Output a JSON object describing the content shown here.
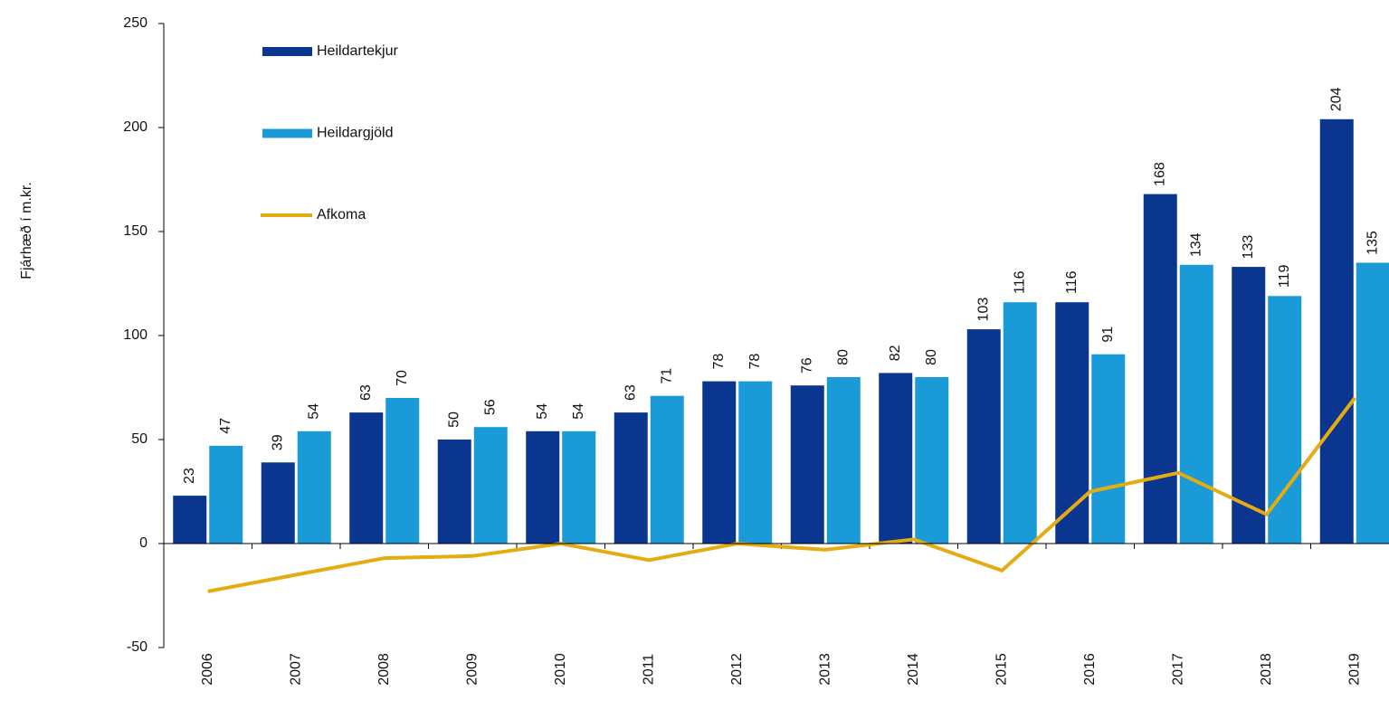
{
  "chart_data": {
    "type": "bar",
    "y_label": "Fjárhæð í m.kr.",
    "categories": [
      "2006",
      "2007",
      "2008",
      "2009",
      "2010",
      "2011",
      "2012",
      "2013",
      "2014",
      "2015",
      "2016",
      "2017",
      "2018",
      "2019"
    ],
    "series": [
      {
        "name": "Heildartekjur",
        "color": "#0a3690",
        "values": [
          23,
          39,
          63,
          50,
          54,
          63,
          78,
          76,
          82,
          103,
          116,
          168,
          133,
          204
        ]
      },
      {
        "name": "Heildargjöld",
        "color": "#1b9ad8",
        "values": [
          47,
          54,
          70,
          56,
          54,
          71,
          78,
          80,
          80,
          116,
          91,
          134,
          119,
          135
        ]
      },
      {
        "name": "Afkoma",
        "color": "#e5ac12",
        "type": "line",
        "values": [
          -23,
          -15,
          -7,
          -6,
          0,
          -8,
          0,
          -3,
          2,
          -13,
          25,
          34,
          14,
          70
        ]
      }
    ],
    "ylim": [
      -50,
      250
    ],
    "yticks": [
      -50,
      0,
      50,
      100,
      150,
      200,
      250
    ],
    "value_labels_shown": true,
    "legend": "upper left"
  }
}
